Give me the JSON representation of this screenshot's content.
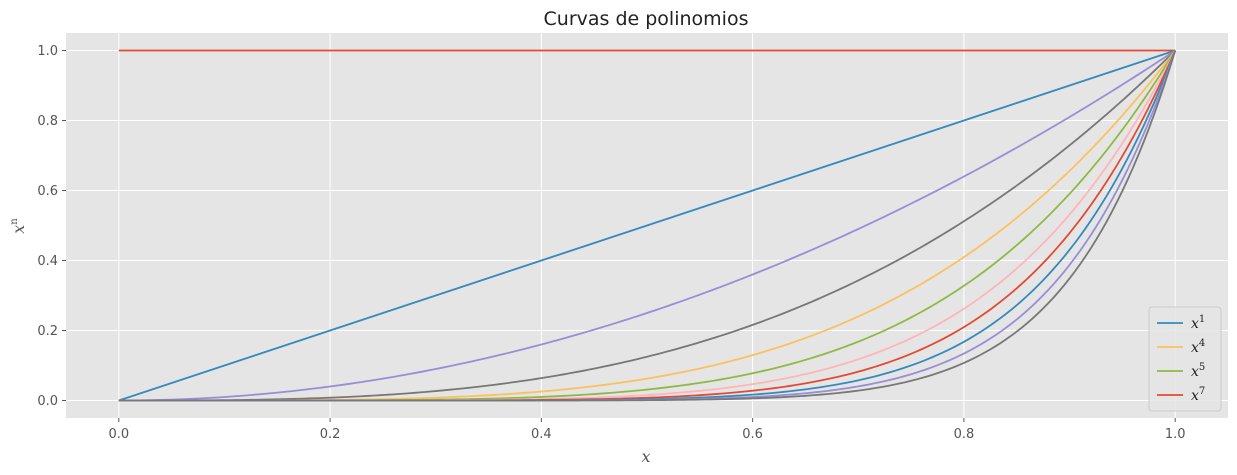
{
  "chart_data": {
    "type": "line",
    "title": "Curvas de polinomios",
    "xlabel": "x",
    "ylabel": {
      "base": "x",
      "sup": "n"
    },
    "xlim": [
      -0.05,
      1.05
    ],
    "ylim": [
      -0.05,
      1.05
    ],
    "xticks": [
      0.0,
      0.2,
      0.4,
      0.6,
      0.8,
      1.0
    ],
    "xtick_labels": [
      "0.0",
      "0.2",
      "0.4",
      "0.6",
      "0.8",
      "1.0"
    ],
    "yticks": [
      0.0,
      0.2,
      0.4,
      0.6,
      0.8,
      1.0
    ],
    "ytick_labels": [
      "0.0",
      "0.2",
      "0.4",
      "0.6",
      "0.8",
      "1.0"
    ],
    "grid": true,
    "legend_placement": "lower-right",
    "x_domain": [
      0,
      1
    ],
    "series": [
      {
        "exponent": 0,
        "color": "#E24A33"
      },
      {
        "exponent": 1,
        "color": "#348ABD"
      },
      {
        "exponent": 2,
        "color": "#988ED5"
      },
      {
        "exponent": 3,
        "color": "#777777"
      },
      {
        "exponent": 4,
        "color": "#FBC15E"
      },
      {
        "exponent": 5,
        "color": "#8EBA42"
      },
      {
        "exponent": 6,
        "color": "#FFB5B8"
      },
      {
        "exponent": 7,
        "color": "#E24A33"
      },
      {
        "exponent": 8,
        "color": "#348ABD"
      },
      {
        "exponent": 9,
        "color": "#988ED5"
      },
      {
        "exponent": 10,
        "color": "#777777"
      }
    ],
    "legend": [
      {
        "base": "x",
        "sup": "1",
        "color": "#348ABD"
      },
      {
        "base": "x",
        "sup": "4",
        "color": "#FBC15E"
      },
      {
        "base": "x",
        "sup": "5",
        "color": "#8EBA42"
      },
      {
        "base": "x",
        "sup": "7",
        "color": "#E24A33"
      }
    ],
    "colors": {
      "plot_background": "#E5E5E5",
      "grid": "#FFFFFF",
      "tick": "#555555"
    }
  }
}
